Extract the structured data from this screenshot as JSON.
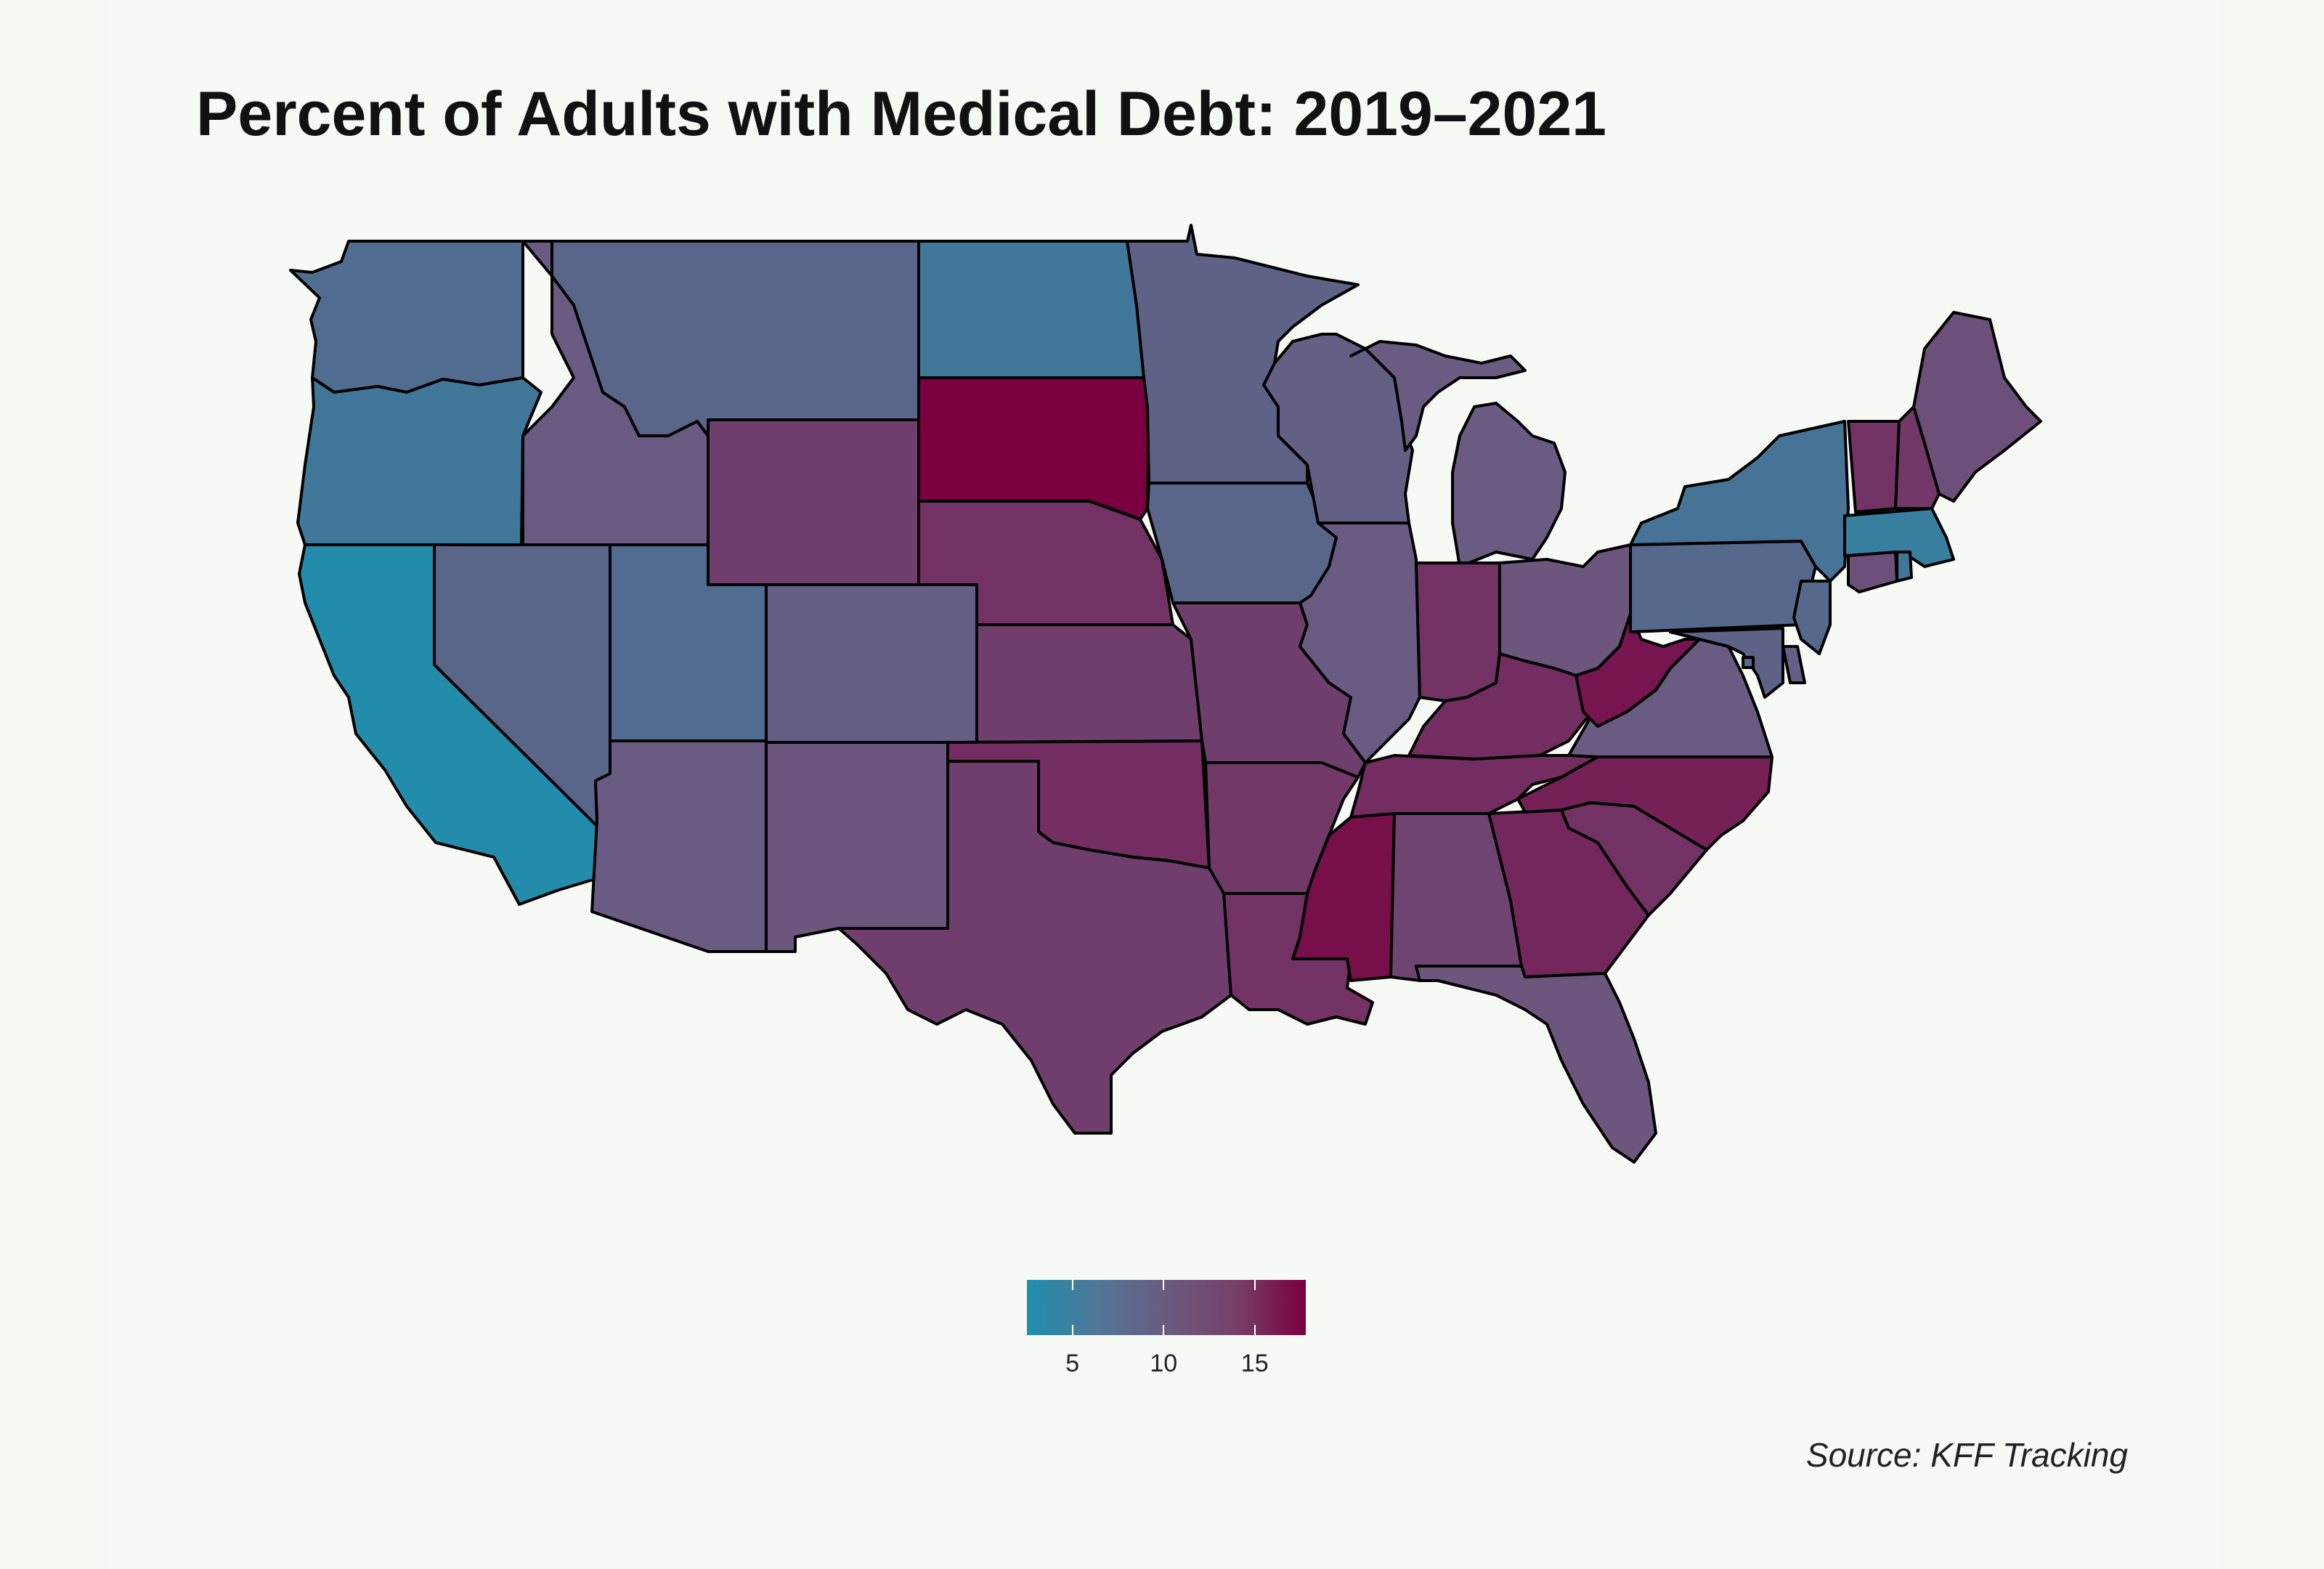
{
  "title": "Percent of Adults with Medical Debt: 2019–2021",
  "source": "Source: KFF Tracking",
  "colors": {
    "low": "#1e8fae",
    "mid": "#6b5a80",
    "high": "#7a0040",
    "border": "#000000",
    "background": "#f5f9f2"
  },
  "legend": {
    "min": 2.5,
    "max": 17.8,
    "ticks": [
      {
        "value": 5,
        "label": "5"
      },
      {
        "value": 10,
        "label": "10"
      },
      {
        "value": 15,
        "label": "15"
      }
    ]
  },
  "states": [
    {
      "id": "WA",
      "value": 7.5
    },
    {
      "id": "OR",
      "value": 6.0
    },
    {
      "id": "CA",
      "value": 3.0
    },
    {
      "id": "ID",
      "value": 10.0
    },
    {
      "id": "NV",
      "value": 8.5
    },
    {
      "id": "MT",
      "value": 8.5
    },
    {
      "id": "WY",
      "value": 12.5
    },
    {
      "id": "UT",
      "value": 7.5
    },
    {
      "id": "AZ",
      "value": 10.0
    },
    {
      "id": "CO",
      "value": 9.5
    },
    {
      "id": "NM",
      "value": 10.5
    },
    {
      "id": "ND",
      "value": 6.0
    },
    {
      "id": "SD",
      "value": 17.8
    },
    {
      "id": "NE",
      "value": 13.5
    },
    {
      "id": "KS",
      "value": 12.5
    },
    {
      "id": "OK",
      "value": 14.0
    },
    {
      "id": "TX",
      "value": 12.5
    },
    {
      "id": "MN",
      "value": 9.0
    },
    {
      "id": "IA",
      "value": 8.5
    },
    {
      "id": "MO",
      "value": 12.5
    },
    {
      "id": "AR",
      "value": 13.0
    },
    {
      "id": "LA",
      "value": 13.5
    },
    {
      "id": "WI",
      "value": 9.5
    },
    {
      "id": "IL",
      "value": 10.0
    },
    {
      "id": "MI",
      "value": 10.0
    },
    {
      "id": "IN",
      "value": 13.5
    },
    {
      "id": "OH",
      "value": 10.5
    },
    {
      "id": "KY",
      "value": 14.0
    },
    {
      "id": "TN",
      "value": 14.0
    },
    {
      "id": "MS",
      "value": 16.5
    },
    {
      "id": "AL",
      "value": 12.0
    },
    {
      "id": "GA",
      "value": 14.5
    },
    {
      "id": "FL",
      "value": 10.5
    },
    {
      "id": "SC",
      "value": 13.5
    },
    {
      "id": "NC",
      "value": 15.0
    },
    {
      "id": "VA",
      "value": 10.0
    },
    {
      "id": "WV",
      "value": 16.0
    },
    {
      "id": "PA",
      "value": 8.0
    },
    {
      "id": "NY",
      "value": 6.5
    },
    {
      "id": "VT",
      "value": 13.5
    },
    {
      "id": "NH",
      "value": 13.0
    },
    {
      "id": "ME",
      "value": 11.0
    },
    {
      "id": "MA",
      "value": 5.0
    },
    {
      "id": "CT",
      "value": 11.0
    },
    {
      "id": "RI",
      "value": 6.0
    },
    {
      "id": "NJ",
      "value": 8.0
    },
    {
      "id": "DE",
      "value": 9.5
    },
    {
      "id": "MD",
      "value": 9.0
    },
    {
      "id": "DC",
      "value": 8.0
    }
  ]
}
